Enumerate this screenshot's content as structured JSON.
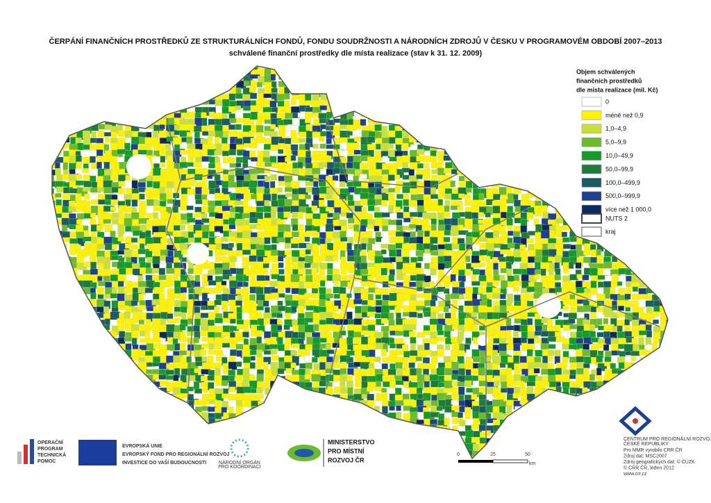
{
  "header": {
    "title": "ČERPÁNÍ FINANČNÍCH PROSTŘEDKŮ ZE STRUKTURÁLNÍCH FONDŮ, FONDU SOUDRŽNOSTI A NÁRODNÍCH ZDROJŮ V ČESKU V PROGRAMOVÉM OBDOBÍ 2007–2013",
    "subtitle": "schválené finanční prostředky dle místa realizace (stav k 31. 12. 2009)"
  },
  "legend": {
    "title": [
      "Objem schválených",
      "finančních prostředků",
      "dle místa realizace (mil. Kč)"
    ],
    "classes": [
      {
        "label": "0",
        "color": "#ffffff"
      },
      {
        "label": "méně než 0,9",
        "color": "#fff200"
      },
      {
        "label": "1,0–4,9",
        "color": "#c9e03a"
      },
      {
        "label": "5,0–9,9",
        "color": "#6cbb2e"
      },
      {
        "label": "10,0–49,9",
        "color": "#169a2c"
      },
      {
        "label": "50,0–99,9",
        "color": "#1b7a3c"
      },
      {
        "label": "100,0–499,9",
        "color": "#1a5b68"
      },
      {
        "label": "500,0–999,9",
        "color": "#1f3f91"
      },
      {
        "label": "více než 1 000,0",
        "color": "#0d2a5c"
      }
    ],
    "boundaries": [
      {
        "label": "NUTS 2"
      },
      {
        "label": "kraj"
      }
    ]
  },
  "scale": {
    "ticks": [
      0,
      25,
      50
    ],
    "unit": "km"
  },
  "logos": {
    "op": [
      "OPERAČNÍ",
      "PROGRAM",
      "TECHNICKÁ",
      "POMOC"
    ],
    "eu": [
      "EVROPSKÁ UNIE",
      "EVROPSKÝ FOND PRO REGIONÁLNÍ ROZVOJ",
      "INVESTICE DO VAŠÍ BUDOUCNOSTI"
    ],
    "no": [
      "NÁRODNÍ ORGÁN",
      "PRO KOORDINACI"
    ],
    "mmr": [
      "MINISTERSTVO",
      "PRO MÍSTNÍ",
      "ROZVOJ ČR"
    ],
    "crr": [
      "CENTRUM PRO REGIONÁLNÍ ROZVOJ",
      "ČESKÉ REPUBLIKY"
    ]
  },
  "credits": [
    "Pro MMR vyrobilo CRR ČR",
    "Zdroj dat: MSC2007",
    "Zdroj geografických dat: © ČÚZK",
    "© CRR ČR, leden 2012",
    "www.crr.cz"
  ]
}
